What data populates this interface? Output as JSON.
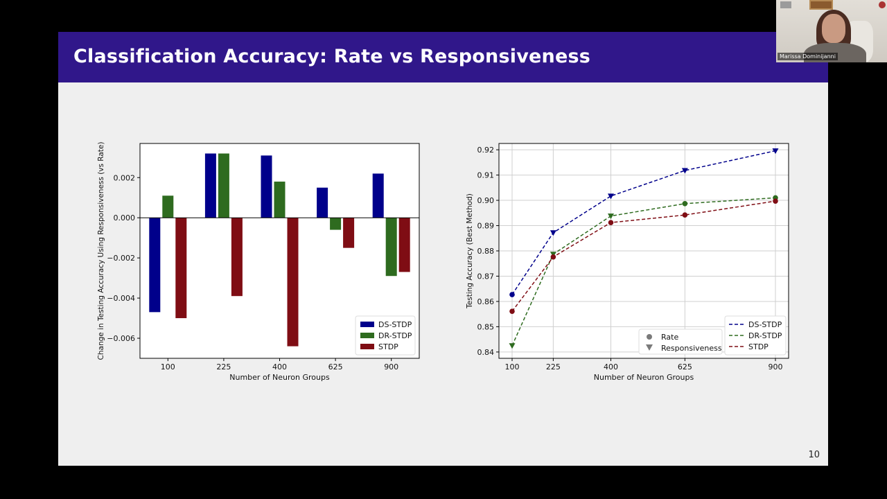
{
  "slide": {
    "title": "Classification Accuracy: Rate vs Responsiveness",
    "page_number": "10"
  },
  "video": {
    "participant_name": "Marissa Dominijanni"
  },
  "colors": {
    "ds_stdp": "#00008b",
    "dr_stdp": "#2e6b1f",
    "stdp": "#7f0d14",
    "header": "#30178a"
  },
  "chart_data": [
    {
      "type": "bar",
      "xlabel": "Number of Neuron Groups",
      "ylabel": "Change in Testing Accuracy Using Responsiveness (vs Rate)",
      "categories": [
        "100",
        "225",
        "400",
        "625",
        "900"
      ],
      "ylim": [
        -0.007,
        0.0037
      ],
      "yticks": [
        -0.006,
        -0.004,
        -0.002,
        0.0,
        0.002
      ],
      "ytick_labels": [
        "−0.006",
        "−0.004",
        "−0.002",
        "0.000",
        "0.002"
      ],
      "legend_position": "bottom-right",
      "series": [
        {
          "name": "DS-STDP",
          "color": "#00008b",
          "values": [
            -0.0047,
            0.0032,
            0.0031,
            0.0015,
            0.0022
          ]
        },
        {
          "name": "DR-STDP",
          "color": "#2e6b1f",
          "values": [
            0.0011,
            0.0032,
            0.0018,
            -0.0006,
            -0.0029
          ]
        },
        {
          "name": "STDP",
          "color": "#7f0d14",
          "values": [
            -0.005,
            -0.0039,
            -0.0064,
            -0.0015,
            -0.0027
          ]
        }
      ]
    },
    {
      "type": "line",
      "xlabel": "Number of Neuron Groups",
      "ylabel": "Testing Accuracy (Best Method)",
      "x": [
        100,
        225,
        400,
        625,
        900
      ],
      "xticks": [
        "100",
        "225",
        "400",
        "625",
        "900"
      ],
      "ylim": [
        0.8375,
        0.9225
      ],
      "yticks": [
        0.84,
        0.85,
        0.86,
        0.87,
        0.88,
        0.89,
        0.9,
        0.91,
        0.92
      ],
      "ytick_labels": [
        "0.84",
        "0.85",
        "0.86",
        "0.87",
        "0.88",
        "0.89",
        "0.90",
        "0.91",
        "0.92"
      ],
      "grid": true,
      "marker_legend": [
        "Rate",
        "Responsiveness"
      ],
      "marker_legend_position": "bottom-center",
      "legend_position": "bottom-right",
      "series": [
        {
          "name": "DS-STDP",
          "color": "#00008b",
          "values": [
            0.8627,
            0.8872,
            0.9017,
            0.9118,
            0.9196
          ],
          "markers": [
            "circle",
            "triangle",
            "triangle",
            "triangle",
            "triangle"
          ]
        },
        {
          "name": "DR-STDP",
          "color": "#2e6b1f",
          "values": [
            0.8425,
            0.8787,
            0.8938,
            0.8987,
            0.901
          ],
          "markers": [
            "triangle",
            "triangle",
            "triangle",
            "circle",
            "circle"
          ]
        },
        {
          "name": "STDP",
          "color": "#7f0d14",
          "values": [
            0.8561,
            0.8776,
            0.8912,
            0.8942,
            0.8997
          ],
          "markers": [
            "circle",
            "circle",
            "circle",
            "circle",
            "circle"
          ]
        }
      ]
    }
  ]
}
